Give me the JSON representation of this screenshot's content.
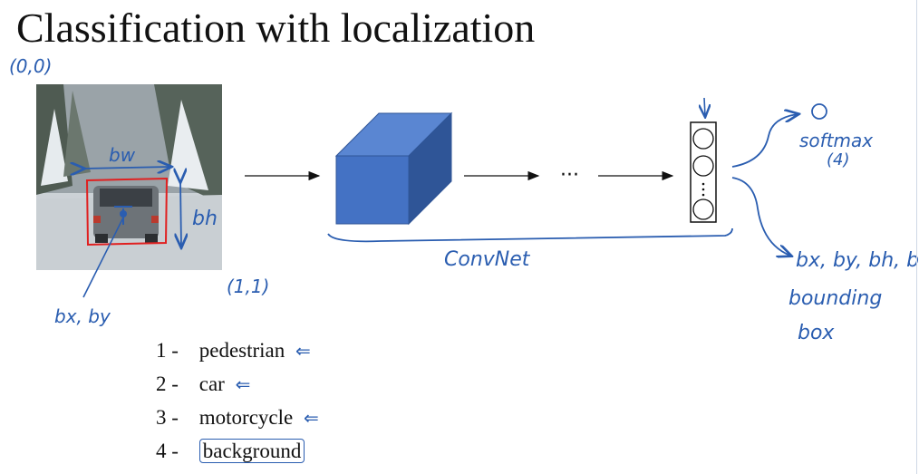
{
  "title": "Classification with localization",
  "annotations": {
    "origin": "(0,0)",
    "corner": "(1,1)",
    "bw": "bw",
    "bh": "bh",
    "bxby": "bx, by",
    "ellipsis": "···",
    "convnet": "ConvNet",
    "softmax": "softmax",
    "softmax_count": "(4)",
    "bbox_outputs": "bx, by, bh, bw",
    "bounding": "bounding",
    "box": "box"
  },
  "classes": [
    {
      "num": "1 -",
      "label": "pedestrian",
      "mark": "⇐"
    },
    {
      "num": "2 -",
      "label": "car",
      "mark": "⇐"
    },
    {
      "num": "3 -",
      "label": "motorcycle",
      "mark": "⇐"
    },
    {
      "num": "4 -",
      "label": "background",
      "mark": ""
    }
  ],
  "colors": {
    "ink": "#2a5db0",
    "cube_front": "#4472c4",
    "cube_top": "#5a86d2",
    "cube_side": "#2f5597",
    "bbox": "#e02020"
  }
}
